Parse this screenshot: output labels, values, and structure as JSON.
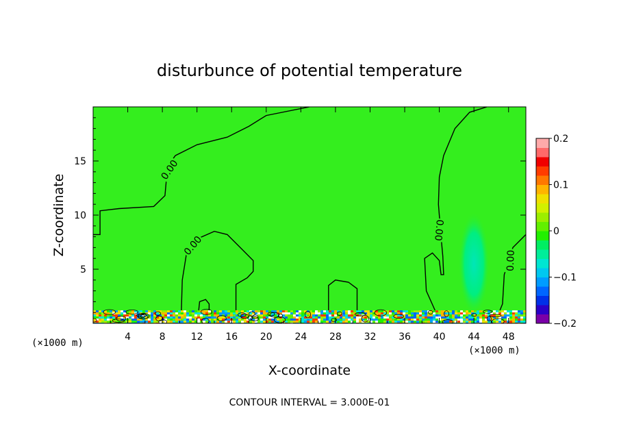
{
  "chart_data": {
    "type": "heatmap",
    "title": "disturbunce of potential temperature",
    "xlabel": "X-coordinate",
    "ylabel": "Z-coordinate",
    "x_unit_left": "(×1000 m)",
    "x_unit_right": "(×1000 m)",
    "xlim": [
      0,
      50
    ],
    "ylim": [
      0,
      20
    ],
    "x_ticks": [
      4,
      8,
      12,
      16,
      20,
      24,
      28,
      32,
      36,
      40,
      44,
      48
    ],
    "y_ticks": [
      5,
      10,
      15
    ],
    "footer": "CONTOUR INTERVAL = 3.000E-01",
    "contour_label": "0.00",
    "colorbar": {
      "min": -0.2,
      "max": 0.2,
      "tick_values": [
        0.2,
        0.1,
        0,
        -0.1,
        -0.2
      ],
      "tick_labels": [
        "0.2",
        "0.1",
        "0",
        "−0.1",
        "−0.2"
      ],
      "colors": [
        "#7a00a8",
        "#2a00c8",
        "#0030e8",
        "#0066ff",
        "#009cff",
        "#00c8f0",
        "#00e6d2",
        "#00ee9a",
        "#00ee62",
        "#22f000",
        "#62f000",
        "#9cee00",
        "#d2f000",
        "#f0e000",
        "#ffb400",
        "#ff7800",
        "#ff3c00",
        "#f00000",
        "#ff6a6a",
        "#ffaaaa"
      ]
    },
    "background_level_color": "#34ee1e",
    "features": [
      {
        "name": "zero-contour-upper-left",
        "value": 0.0,
        "path_xy": [
          [
            0,
            8.2
          ],
          [
            0.8,
            8.2
          ],
          [
            0.8,
            10.4
          ],
          [
            3,
            10.6
          ],
          [
            7,
            10.8
          ],
          [
            8.3,
            11.8
          ],
          [
            8.6,
            14.5
          ],
          [
            9.5,
            15.5
          ],
          [
            12,
            16.5
          ],
          [
            15.5,
            17.2
          ],
          [
            18,
            18.2
          ],
          [
            20,
            19.2
          ],
          [
            25,
            20
          ]
        ]
      },
      {
        "name": "zero-contour-mid-bump",
        "value": 0.0,
        "path_xy": [
          [
            10.2,
            1.2
          ],
          [
            10.3,
            4
          ],
          [
            10.8,
            6.5
          ],
          [
            12,
            7.8
          ],
          [
            14,
            8.5
          ],
          [
            15.5,
            8.2
          ],
          [
            17,
            7
          ],
          [
            18.5,
            5.8
          ],
          [
            18.5,
            4.8
          ],
          [
            17.8,
            4.2
          ],
          [
            16.5,
            3.6
          ],
          [
            16.5,
            1.2
          ]
        ]
      },
      {
        "name": "zero-contour-small-bump",
        "value": 0.0,
        "path_xy": [
          [
            27.2,
            1.2
          ],
          [
            27.2,
            3.5
          ],
          [
            28,
            4
          ],
          [
            29.5,
            3.8
          ],
          [
            30.5,
            3.2
          ],
          [
            30.5,
            1.2
          ]
        ]
      },
      {
        "name": "zero-contour-right-tower",
        "value": 0.0,
        "path_xy": [
          [
            39.5,
            1.2
          ],
          [
            38.5,
            3
          ],
          [
            38.3,
            6
          ],
          [
            39.2,
            6.5
          ],
          [
            40,
            5.8
          ],
          [
            40.2,
            4.5
          ],
          [
            40.5,
            4.5
          ],
          [
            40.4,
            6.2
          ],
          [
            40.2,
            8
          ],
          [
            39.9,
            11
          ],
          [
            40.0,
            13.5
          ],
          [
            40.5,
            15.5
          ],
          [
            41.8,
            18
          ],
          [
            43.5,
            19.5
          ],
          [
            45.5,
            20
          ]
        ]
      },
      {
        "name": "zero-contour-right-edge",
        "value": 0.0,
        "path_xy": [
          [
            50,
            8.2
          ],
          [
            48.5,
            7
          ],
          [
            47.5,
            4.5
          ],
          [
            47.3,
            1.8
          ],
          [
            47,
            1.2
          ]
        ]
      },
      {
        "name": "zero-contour-tiny-ring",
        "value": 0.0,
        "path_xy": [
          [
            12.2,
            1.2
          ],
          [
            12.3,
            2
          ],
          [
            13,
            2.2
          ],
          [
            13.4,
            1.8
          ],
          [
            13.4,
            1.2
          ]
        ]
      }
    ],
    "weak_negative_plume": {
      "x_center": 44.0,
      "z_center": 5.5,
      "x_radius": 1.8,
      "z_radius": 4.8
    },
    "surface_layer_top_z": 1.2
  }
}
